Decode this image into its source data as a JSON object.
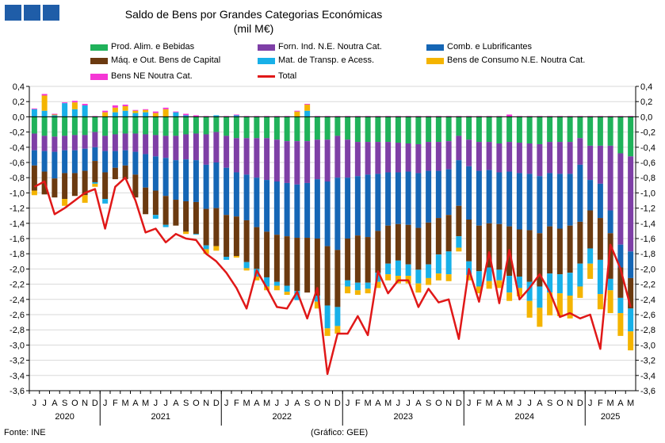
{
  "header": {
    "title": "Saldo de Bens por Grandes Categorias Económicas",
    "subtitle": "(mil M€)"
  },
  "legend": [
    {
      "label": "Prod. Alim. e Bebidas",
      "color": "#20b25a"
    },
    {
      "label": "Forn. Ind. N.E. Noutra Cat.",
      "color": "#7e3fa6"
    },
    {
      "label": "Comb. e Lubrificantes",
      "color": "#1566b5"
    },
    {
      "label": "Máq. e Out. Bens de Capital",
      "color": "#6b3a10"
    },
    {
      "label": "Mat. de Transp. e Acess.",
      "color": "#18b0e8"
    },
    {
      "label": "Bens de Consumo N.E. Noutra Cat.",
      "color": "#f4b400"
    },
    {
      "label": "Bens NE Noutra Cat.",
      "color": "#f536d5"
    },
    {
      "label": "Total",
      "color": "#e01818"
    }
  ],
  "footer": {
    "source": "Fonte: INE",
    "credit": "(Gráfico: GEE)"
  },
  "chart_data": {
    "type": "bar",
    "stacked": true,
    "title": "Saldo de Bens por Grandes Categorias Económicas",
    "subtitle": "(mil M€)",
    "ylim": [
      -3.6,
      0.4
    ],
    "yticks": [
      "0,4",
      "0,2",
      "0,0",
      "-0,2",
      "-0,4",
      "-0,6",
      "-0,8",
      "-1,0",
      "-1,2",
      "-1,4",
      "-1,6",
      "-1,8",
      "-2,0",
      "-2,2",
      "-2,4",
      "-2,6",
      "-2,8",
      "-3,0",
      "-3,2",
      "-3,4",
      "-3,6"
    ],
    "month_labels": [
      "J",
      "J",
      "A",
      "S",
      "O",
      "N",
      "D",
      "J",
      "F",
      "M",
      "A",
      "M",
      "J",
      "J",
      "A",
      "S",
      "O",
      "N",
      "D",
      "J",
      "F",
      "M",
      "A",
      "M",
      "J",
      "J",
      "A",
      "S",
      "O",
      "N",
      "D",
      "J",
      "F",
      "M",
      "A",
      "M",
      "J",
      "J",
      "A",
      "S",
      "O",
      "N",
      "D",
      "J",
      "F",
      "M",
      "A",
      "M",
      "J",
      "J",
      "A",
      "S",
      "O",
      "N",
      "D",
      "J",
      "F",
      "M",
      "A",
      "M"
    ],
    "year_labels": [
      {
        "label": "2020",
        "start": 0,
        "end": 6
      },
      {
        "label": "2021",
        "start": 7,
        "end": 18
      },
      {
        "label": "2022",
        "start": 19,
        "end": 30
      },
      {
        "label": "2023",
        "start": 31,
        "end": 42
      },
      {
        "label": "2024",
        "start": 43,
        "end": 54
      },
      {
        "label": "2025",
        "start": 55,
        "end": 59
      }
    ],
    "grid": true,
    "legend_position": "top",
    "series": [
      {
        "name": "Prod. Alim. e Bebidas",
        "color": "#20b25a",
        "values": [
          -0.22,
          -0.25,
          -0.26,
          -0.25,
          -0.24,
          -0.24,
          -0.2,
          -0.25,
          -0.23,
          -0.22,
          -0.22,
          -0.23,
          -0.24,
          -0.25,
          -0.25,
          -0.23,
          -0.22,
          -0.23,
          -0.2,
          -0.25,
          -0.28,
          -0.28,
          -0.28,
          -0.28,
          -0.3,
          -0.32,
          -0.32,
          -0.32,
          -0.3,
          -0.3,
          -0.25,
          -0.3,
          -0.33,
          -0.33,
          -0.33,
          -0.33,
          -0.34,
          -0.35,
          -0.36,
          -0.33,
          -0.33,
          -0.32,
          -0.25,
          -0.3,
          -0.33,
          -0.33,
          -0.35,
          -0.33,
          -0.34,
          -0.35,
          -0.36,
          -0.33,
          -0.33,
          -0.33,
          -0.28,
          -0.38,
          -0.38,
          -0.38,
          -0.48,
          -0.52
        ]
      },
      {
        "name": "Forn. Ind. N.E. Noutra Cat.",
        "color": "#7e3fa6",
        "values": [
          -0.22,
          -0.2,
          -0.2,
          -0.19,
          -0.2,
          -0.18,
          -0.2,
          -0.2,
          -0.22,
          -0.22,
          -0.24,
          -0.26,
          -0.28,
          -0.29,
          -0.32,
          -0.33,
          -0.35,
          -0.4,
          -0.4,
          -0.42,
          -0.45,
          -0.48,
          -0.52,
          -0.55,
          -0.55,
          -0.55,
          -0.57,
          -0.55,
          -0.52,
          -0.55,
          -0.55,
          -0.5,
          -0.45,
          -0.43,
          -0.42,
          -0.4,
          -0.39,
          -0.37,
          -0.38,
          -0.38,
          -0.38,
          -0.37,
          -0.32,
          -0.35,
          -0.38,
          -0.37,
          -0.38,
          -0.39,
          -0.4,
          -0.4,
          -0.42,
          -0.41,
          -0.42,
          -0.42,
          -0.35,
          -0.45,
          -0.5,
          -0.85,
          -1.2,
          -1.25
        ]
      },
      {
        "name": "Comb. e Lubrificantes",
        "color": "#1566b5",
        "values": [
          -0.2,
          -0.27,
          -0.35,
          -0.3,
          -0.3,
          -0.29,
          -0.18,
          -0.28,
          -0.22,
          -0.2,
          -0.3,
          -0.44,
          -0.45,
          -0.5,
          -0.52,
          -0.55,
          -0.55,
          -0.58,
          -0.6,
          -0.62,
          -0.58,
          -0.6,
          -0.65,
          -0.68,
          -0.7,
          -0.7,
          -0.7,
          -0.72,
          -0.78,
          -0.85,
          -0.95,
          -0.8,
          -0.78,
          -0.82,
          -0.75,
          -0.7,
          -0.68,
          -0.7,
          -0.72,
          -0.68,
          -0.62,
          -0.6,
          -0.6,
          -0.7,
          -0.72,
          -0.7,
          -0.68,
          -0.72,
          -0.74,
          -0.74,
          -0.75,
          -0.7,
          -0.72,
          -0.68,
          -0.75,
          -0.4,
          -0.45,
          -0.3,
          -0.3,
          -0.35
        ]
      },
      {
        "name": "Máq. e Out. Bens de Capital",
        "color": "#6b3a10",
        "values": [
          -0.33,
          -0.3,
          -0.25,
          -0.34,
          -0.3,
          -0.32,
          -0.28,
          -0.35,
          -0.15,
          -0.18,
          -0.3,
          -0.35,
          -0.32,
          -0.38,
          -0.34,
          -0.4,
          -0.42,
          -0.48,
          -0.5,
          -0.55,
          -0.52,
          -0.55,
          -0.55,
          -0.6,
          -0.62,
          -0.65,
          -0.7,
          -0.72,
          -0.75,
          -0.78,
          -0.75,
          -0.55,
          -0.62,
          -0.6,
          -0.55,
          -0.5,
          -0.48,
          -0.52,
          -0.55,
          -0.55,
          -0.48,
          -0.48,
          -0.4,
          -0.55,
          -0.6,
          -0.58,
          -0.6,
          -0.65,
          -0.62,
          -0.68,
          -0.7,
          -0.62,
          -0.6,
          -0.62,
          -0.55,
          -0.5,
          -0.55,
          -0.6,
          -0.4,
          -0.4
        ]
      },
      {
        "name": "Mat. de Transp. e Acess.",
        "color": "#18b0e8",
        "values": [
          0.1,
          0.08,
          0.02,
          0.18,
          0.1,
          0.15,
          -0.02,
          -0.06,
          0.06,
          0.08,
          0.05,
          0.06,
          -0.05,
          -0.03,
          0.06,
          0.02,
          -0.01,
          -0.05,
          0.02,
          -0.04,
          0.02,
          -0.08,
          -0.1,
          -0.12,
          -0.05,
          -0.08,
          -0.12,
          0.08,
          -0.08,
          -0.3,
          -0.25,
          -0.08,
          -0.1,
          -0.08,
          -0.12,
          -0.14,
          -0.2,
          -0.15,
          -0.18,
          -0.18,
          -0.25,
          -0.3,
          -0.15,
          -0.18,
          -0.2,
          -0.18,
          -0.14,
          -0.22,
          -0.15,
          -0.25,
          -0.28,
          -0.25,
          -0.25,
          -0.3,
          -0.3,
          -0.2,
          -0.45,
          -0.15,
          -0.2,
          -0.3
        ]
      },
      {
        "name": "Bens de Consumo N.E. Noutra Cat.",
        "color": "#f4b400",
        "values": [
          -0.06,
          0.2,
          0.01,
          -0.09,
          0.09,
          -0.1,
          -0.04,
          0.06,
          0.06,
          0.06,
          0.03,
          0.03,
          0.05,
          0.1,
          0.0,
          -0.03,
          0.0,
          -0.06,
          -0.06,
          0.0,
          -0.02,
          -0.03,
          -0.05,
          -0.05,
          -0.06,
          -0.04,
          0.07,
          0.08,
          -0.09,
          -0.1,
          -0.1,
          -0.09,
          -0.06,
          -0.06,
          -0.08,
          -0.08,
          -0.1,
          -0.1,
          -0.12,
          -0.09,
          -0.09,
          -0.09,
          -0.05,
          -0.07,
          -0.09,
          -0.1,
          -0.1,
          -0.11,
          -0.11,
          -0.22,
          -0.25,
          -0.3,
          -0.3,
          -0.3,
          -0.15,
          -0.2,
          -0.2,
          -0.3,
          -0.3,
          -0.25
        ]
      },
      {
        "name": "Bens NE Noutra Cat.",
        "color": "#f536d5",
        "values": [
          0.01,
          0.02,
          0.01,
          0.01,
          0.02,
          0.02,
          0.01,
          0.02,
          0.03,
          0.02,
          0.01,
          0.01,
          0.02,
          0.02,
          0.01,
          0.02,
          0.02,
          0.01,
          0.0,
          0.01,
          0.01,
          0.01,
          0.01,
          0.01,
          0.01,
          0.01,
          0.01,
          0.01,
          0.01,
          0.01,
          0.01,
          0.01,
          0.01,
          0.01,
          0.01,
          0.01,
          0.01,
          0.01,
          0.01,
          0.01,
          0.01,
          0.01,
          0.01,
          0.01,
          0.01,
          0.01,
          0.01,
          0.03,
          0.01,
          0.01,
          0.01,
          0.01,
          0.01,
          0.01,
          0.01,
          0.01,
          0.01,
          0.01,
          0.01,
          0.01
        ]
      },
      {
        "name": "Total",
        "color": "#e01818",
        "type": "line",
        "values": [
          -0.92,
          -0.85,
          -1.28,
          -1.2,
          -1.1,
          -1.0,
          -0.95,
          -1.47,
          -0.92,
          -0.8,
          -1.1,
          -1.52,
          -1.47,
          -1.65,
          -1.54,
          -1.6,
          -1.62,
          -1.8,
          -1.9,
          -2.05,
          -2.25,
          -2.52,
          -2.02,
          -2.25,
          -2.5,
          -2.52,
          -2.3,
          -2.65,
          -2.25,
          -3.38,
          -2.85,
          -2.85,
          -2.62,
          -2.87,
          -2.03,
          -2.32,
          -2.15,
          -2.15,
          -2.5,
          -2.26,
          -2.44,
          -2.4,
          -2.92,
          -2.0,
          -2.43,
          -1.78,
          -2.45,
          -1.75,
          -2.4,
          -2.25,
          -2.07,
          -2.3,
          -2.63,
          -2.58,
          -2.65,
          -2.6,
          -3.05,
          -1.68,
          -2.0,
          -2.5
        ]
      }
    ]
  }
}
